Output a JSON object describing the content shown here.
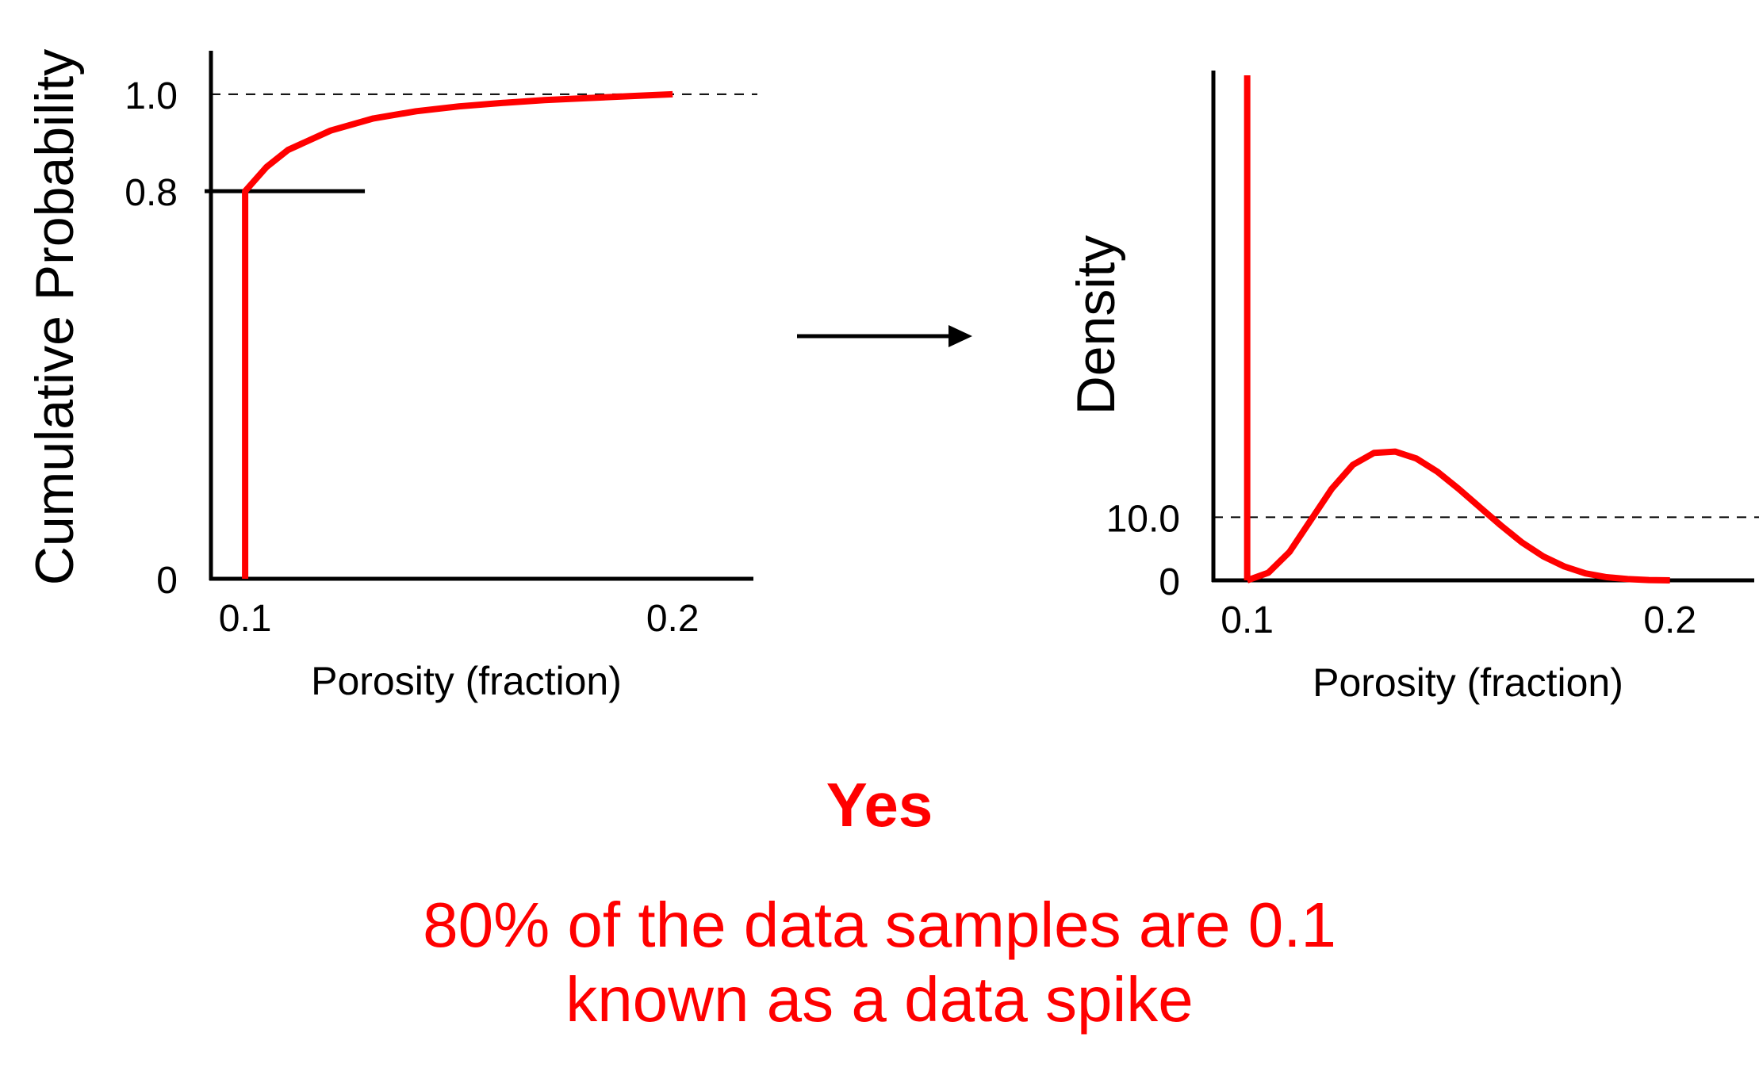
{
  "colors": {
    "accent": "#ff0000",
    "axis": "#000000"
  },
  "chart_data": [
    {
      "type": "line",
      "ylabel": "Cumulative Probability",
      "xlabel": "Porosity (fraction)",
      "x_ticks": [
        "0.1",
        "0.2"
      ],
      "y_ticks": [
        "0",
        "0.8",
        "1.0"
      ],
      "xlim": [
        0.092,
        0.22
      ],
      "ylim": [
        0,
        1.08
      ],
      "reference_line": {
        "y": 1.0,
        "style": "dashed"
      },
      "marker_line": {
        "y": 0.8,
        "x_end": 0.128
      },
      "series": [
        {
          "color": "#ff0000",
          "x": [
            0.1,
            0.1,
            0.105,
            0.11,
            0.12,
            0.13,
            0.14,
            0.15,
            0.16,
            0.17,
            0.18,
            0.19,
            0.2
          ],
          "y": [
            0,
            0.8,
            0.85,
            0.885,
            0.925,
            0.95,
            0.965,
            0.975,
            0.982,
            0.988,
            0.992,
            0.996,
            1.0
          ]
        }
      ]
    },
    {
      "type": "line",
      "ylabel": "Density",
      "xlabel": "Porosity (fraction)",
      "x_ticks": [
        "0.1",
        "0.2"
      ],
      "y_ticks": [
        "0",
        "10.0"
      ],
      "xlim": [
        0.092,
        0.222
      ],
      "ylim": [
        0,
        80
      ],
      "reference_line": {
        "y": 10.0,
        "style": "dashed"
      },
      "spike": {
        "x": 0.1,
        "label": "spike"
      },
      "series": [
        {
          "color": "#ff0000",
          "x": [
            0.1,
            0.105,
            0.11,
            0.115,
            0.12,
            0.125,
            0.13,
            0.135,
            0.14,
            0.145,
            0.15,
            0.155,
            0.16,
            0.165,
            0.17,
            0.175,
            0.18,
            0.185,
            0.19,
            0.195,
            0.2
          ],
          "y": [
            0,
            1.2,
            4.5,
            9.5,
            14.5,
            18.3,
            20.2,
            20.4,
            19.3,
            17.2,
            14.5,
            11.6,
            8.7,
            6.0,
            3.8,
            2.2,
            1.1,
            0.5,
            0.2,
            0.05,
            0
          ]
        }
      ]
    }
  ],
  "arrow": "→",
  "verdict": "Yes",
  "note_lines": [
    "80% of the data samples are 0.1",
    "known as a data spike"
  ]
}
